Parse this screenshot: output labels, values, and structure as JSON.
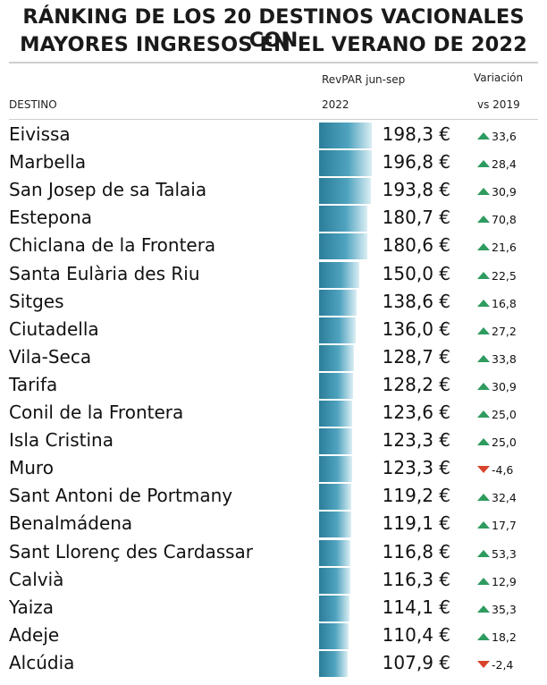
{
  "title_line1": "RÁNKING DE LOS 20 DESTINOS VACIONALES CON",
  "title_line2": "MAYORES INGRESOS EN EL VERANO DE 2022",
  "headers": {
    "destino": "DESTINO",
    "revpar_line1": "RevPAR jun-sep",
    "revpar_line2": "2022",
    "variacion_line1": "Variación",
    "variacion_line2": "vs 2019"
  },
  "colors": {
    "bar": "#2b7d99",
    "up": "#2e9b5f",
    "down": "#d9432b"
  },
  "chart_data": {
    "type": "bar",
    "title": "RÁNKING DE LOS 20 DESTINOS VACIONALES CON MAYORES INGRESOS EN EL VERANO DE 2022",
    "xlabel": "RevPAR jun-sep 2022",
    "ylabel": "DESTINO",
    "rows": [
      {
        "destino": "Eivissa",
        "revpar": 198.3,
        "revpar_label": "198,3 €",
        "variacion": 33.6,
        "variacion_label": "33,6",
        "direction": "up"
      },
      {
        "destino": "Marbella",
        "revpar": 196.8,
        "revpar_label": "196,8 €",
        "variacion": 28.4,
        "variacion_label": "28,4",
        "direction": "up"
      },
      {
        "destino": "San Josep de sa Talaia",
        "revpar": 193.8,
        "revpar_label": "193,8 €",
        "variacion": 30.9,
        "variacion_label": "30,9",
        "direction": "up"
      },
      {
        "destino": "Estepona",
        "revpar": 180.7,
        "revpar_label": "180,7 €",
        "variacion": 70.8,
        "variacion_label": "70,8",
        "direction": "up"
      },
      {
        "destino": "Chiclana de la Frontera",
        "revpar": 180.6,
        "revpar_label": "180,6 €",
        "variacion": 21.6,
        "variacion_label": "21,6",
        "direction": "up"
      },
      {
        "destino": "Santa Eulària des Riu",
        "revpar": 150.0,
        "revpar_label": "150,0 €",
        "variacion": 22.5,
        "variacion_label": "22,5",
        "direction": "up"
      },
      {
        "destino": "Sitges",
        "revpar": 138.6,
        "revpar_label": "138,6 €",
        "variacion": 16.8,
        "variacion_label": "16,8",
        "direction": "up"
      },
      {
        "destino": "Ciutadella",
        "revpar": 136.0,
        "revpar_label": "136,0 €",
        "variacion": 27.2,
        "variacion_label": "27,2",
        "direction": "up"
      },
      {
        "destino": "Vila-Seca",
        "revpar": 128.7,
        "revpar_label": "128,7 €",
        "variacion": 33.8,
        "variacion_label": "33,8",
        "direction": "up"
      },
      {
        "destino": "Tarifa",
        "revpar": 128.2,
        "revpar_label": "128,2 €",
        "variacion": 30.9,
        "variacion_label": "30,9",
        "direction": "up"
      },
      {
        "destino": "Conil de la Frontera",
        "revpar": 123.6,
        "revpar_label": "123,6 €",
        "variacion": 25.0,
        "variacion_label": "25,0",
        "direction": "up"
      },
      {
        "destino": "Isla Cristina",
        "revpar": 123.3,
        "revpar_label": "123,3 €",
        "variacion": 25.0,
        "variacion_label": "25,0",
        "direction": "up"
      },
      {
        "destino": "Muro",
        "revpar": 123.3,
        "revpar_label": "123,3 €",
        "variacion": -4.6,
        "variacion_label": "-4,6",
        "direction": "down"
      },
      {
        "destino": "Sant Antoni de Portmany",
        "revpar": 119.2,
        "revpar_label": "119,2 €",
        "variacion": 32.4,
        "variacion_label": "32,4",
        "direction": "up"
      },
      {
        "destino": "Benalmádena",
        "revpar": 119.1,
        "revpar_label": "119,1 €",
        "variacion": 17.7,
        "variacion_label": "17,7",
        "direction": "up"
      },
      {
        "destino": "Sant Llorenç des Cardassar",
        "revpar": 116.8,
        "revpar_label": "116,8 €",
        "variacion": 53.3,
        "variacion_label": "53,3",
        "direction": "up"
      },
      {
        "destino": "Calvià",
        "revpar": 116.3,
        "revpar_label": "116,3 €",
        "variacion": 12.9,
        "variacion_label": "12,9",
        "direction": "up"
      },
      {
        "destino": "Yaiza",
        "revpar": 114.1,
        "revpar_label": "114,1 €",
        "variacion": 35.3,
        "variacion_label": "35,3",
        "direction": "up"
      },
      {
        "destino": "Adeje",
        "revpar": 110.4,
        "revpar_label": "110,4 €",
        "variacion": 18.2,
        "variacion_label": "18,2",
        "direction": "up"
      },
      {
        "destino": "Alcúdia",
        "revpar": 107.9,
        "revpar_label": "107,9 €",
        "variacion": -2.4,
        "variacion_label": "-2,4",
        "direction": "down"
      }
    ]
  }
}
